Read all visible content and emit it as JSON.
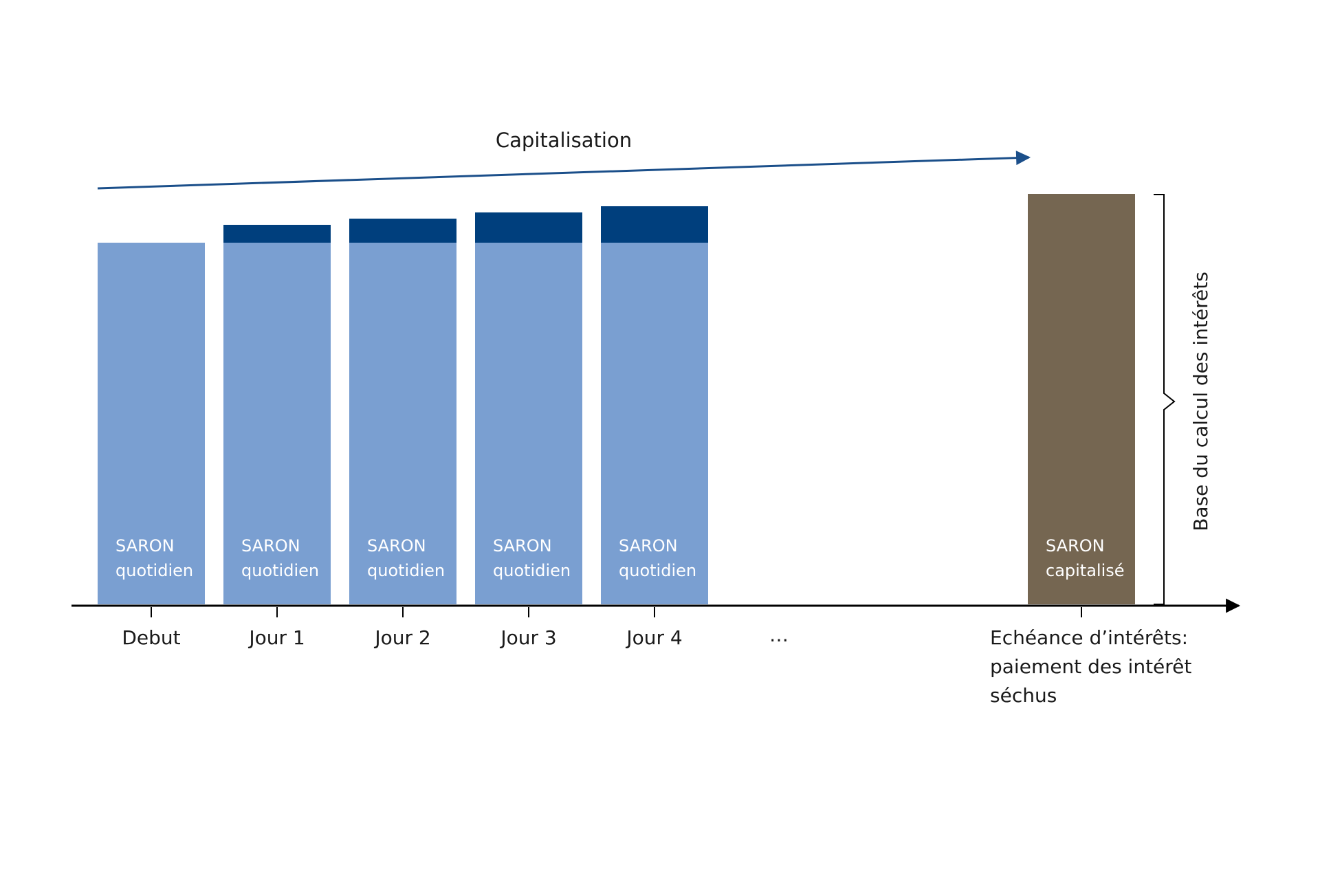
{
  "diagram": {
    "top_arrow_label": "Capitalisation",
    "side_label": "Base du calcul des intérêts",
    "bars": [
      {
        "name": "debut",
        "line1": "SARON",
        "line2": "quotidien",
        "tick": "Debut",
        "increment": 0
      },
      {
        "name": "jour-1",
        "line1": "SARON",
        "line2": "quotidien",
        "tick": "Jour 1",
        "increment": 1
      },
      {
        "name": "jour-2",
        "line1": "SARON",
        "line2": "quotidien",
        "tick": "Jour 2",
        "increment": 2
      },
      {
        "name": "jour-3",
        "line1": "SARON",
        "line2": "quotidien",
        "tick": "Jour 3",
        "increment": 3
      },
      {
        "name": "jour-4",
        "line1": "SARON",
        "line2": "quotidien",
        "tick": "Jour 4",
        "increment": 4
      }
    ],
    "ellipsis": "…",
    "final_bar": {
      "line1": "SARON",
      "line2": "capitalisé"
    },
    "final_tick_lines": [
      "Echéance d’intérêts:",
      "paiement des intérêt",
      "séchus"
    ],
    "colors": {
      "base": "#7a9fd1",
      "increment": "#003f7d",
      "final": "#756651",
      "axis": "#000000",
      "arrow": "#1b4f8a",
      "bar_text": "#ffffff",
      "text": "#1a1a1a"
    }
  }
}
